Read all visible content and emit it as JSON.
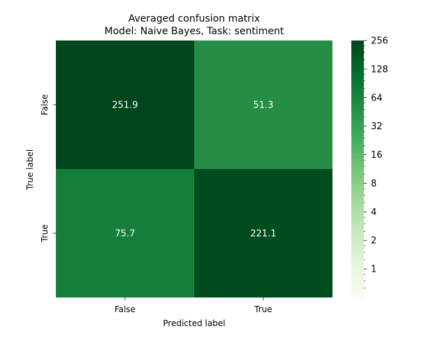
{
  "chart_data": {
    "type": "heatmap",
    "title_lines": [
      "Averaged confusion matrix",
      "Model: Naive Bayes, Task: sentiment"
    ],
    "xlabel": "Predicted label",
    "ylabel": "True label",
    "x_categories": [
      "False",
      "True"
    ],
    "y_categories": [
      "False",
      "True"
    ],
    "values": [
      [
        251.9,
        51.3
      ],
      [
        75.7,
        221.1
      ]
    ],
    "cell_labels": [
      [
        "251.9",
        "51.3"
      ],
      [
        "75.7",
        "221.1"
      ]
    ],
    "colormap": "Greens",
    "color_scale": "log",
    "colorbar": {
      "range": [
        0.5,
        256
      ],
      "ticks": [
        1,
        2,
        4,
        8,
        16,
        32,
        64,
        128,
        256
      ],
      "tick_labels": [
        "1",
        "2",
        "4",
        "8",
        "16",
        "32",
        "64",
        "128",
        "256"
      ]
    }
  }
}
